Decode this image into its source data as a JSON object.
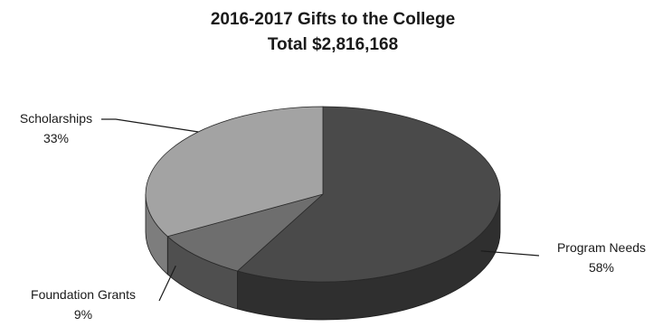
{
  "chart_data": {
    "type": "pie",
    "title": "2016-2017 Gifts to the College",
    "subtitle": "Total $2,816,168",
    "three_d": true,
    "slices": [
      {
        "label": "Program Needs",
        "percent_label": "58%",
        "value": 58,
        "color": "#4a4a4a",
        "side_color": "#2f2f2f"
      },
      {
        "label": "Foundation Grants",
        "percent_label": "9%",
        "value": 9,
        "color": "#6e6e6e",
        "side_color": "#4f4f4f"
      },
      {
        "label": "Scholarships",
        "percent_label": "33%",
        "value": 33,
        "color": "#a3a3a3",
        "side_color": "#7d7d7d"
      }
    ]
  }
}
